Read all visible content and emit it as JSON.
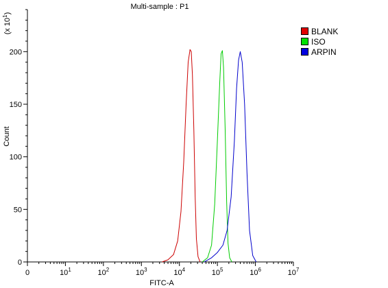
{
  "chart_data": {
    "type": "line",
    "title": "Multi-sample : P1",
    "xlabel": "FITC-A",
    "ylabel": "Count",
    "ylabel_multiplier": "(x 10",
    "ylabel_multiplier_exp": "1",
    "ylabel_multiplier_close": ")",
    "x_scale": "log",
    "xlim": [
      1,
      10000000
    ],
    "ylim": [
      0,
      240
    ],
    "x_ticks": [
      {
        "value": 1,
        "label": "0"
      },
      {
        "value": 10,
        "base": "10",
        "exp": "1"
      },
      {
        "value": 100,
        "base": "10",
        "exp": "2"
      },
      {
        "value": 1000,
        "base": "10",
        "exp": "3"
      },
      {
        "value": 10000,
        "base": "10",
        "exp": "4"
      },
      {
        "value": 100000,
        "base": "10",
        "exp": "5"
      },
      {
        "value": 1000000,
        "base": "10",
        "exp": "6"
      },
      {
        "value": 10000000,
        "base": "10",
        "exp": "7"
      }
    ],
    "y_ticks": [
      0,
      50,
      100,
      150,
      200
    ],
    "legend_position": "top-right",
    "series": [
      {
        "name": "BLANK",
        "color": "#cc0000",
        "x": [
          3500,
          5000,
          7000,
          9000,
          11000,
          13000,
          15000,
          17000,
          19000,
          20500,
          22000,
          24000,
          26000,
          28000,
          31000,
          35000
        ],
        "y": [
          0,
          2,
          7,
          20,
          48,
          95,
          150,
          190,
          202,
          200,
          178,
          125,
          62,
          22,
          5,
          0
        ]
      },
      {
        "name": "ISO",
        "color": "#00cc00",
        "x": [
          40000,
          55000,
          70000,
          85000,
          100000,
          115000,
          125000,
          135000,
          145000,
          160000,
          175000,
          190000,
          210000,
          240000
        ],
        "y": [
          0,
          4,
          16,
          55,
          115,
          170,
          198,
          201,
          185,
          125,
          58,
          18,
          4,
          0
        ]
      },
      {
        "name": "ARPIN",
        "color": "#0000cc",
        "x": [
          45000,
          70000,
          100000,
          140000,
          180000,
          230000,
          280000,
          320000,
          360000,
          400000,
          450000,
          520000,
          600000,
          700000,
          850000,
          1050000
        ],
        "y": [
          0,
          4,
          9,
          16,
          30,
          62,
          115,
          165,
          192,
          200,
          190,
          150,
          85,
          30,
          6,
          0
        ]
      }
    ]
  }
}
